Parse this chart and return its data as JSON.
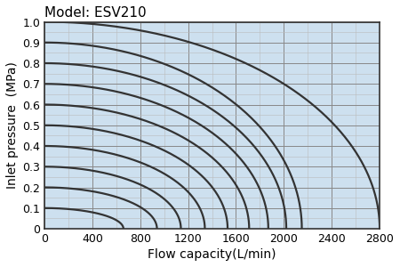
{
  "title": "Model: ESV210",
  "xlabel": "Flow capacity(L/min)",
  "ylabel": "Inlet pressure  (MPa)",
  "xlim": [
    0,
    2800
  ],
  "ylim": [
    0,
    1.0
  ],
  "xticks": [
    0,
    400,
    800,
    1200,
    1600,
    2000,
    2400,
    2800
  ],
  "yticks": [
    0,
    0.1,
    0.2,
    0.3,
    0.4,
    0.5,
    0.6,
    0.7,
    0.8,
    0.9,
    1.0
  ],
  "bg_color": "#cde0ef",
  "curve_color": "#333333",
  "curve_x_intercepts": [
    660,
    940,
    1140,
    1340,
    1530,
    1710,
    1870,
    2020,
    2150,
    2800
  ],
  "curve_y_intercepts": [
    0.1,
    0.2,
    0.3,
    0.4,
    0.5,
    0.6,
    0.7,
    0.8,
    0.9,
    1.0
  ],
  "title_fontsize": 11,
  "label_fontsize": 10,
  "tick_fontsize": 9,
  "linewidth": 1.6,
  "major_grid_color": "#888888",
  "minor_grid_color": "#bbbbbb",
  "major_grid_linewidth": 0.7,
  "minor_grid_linewidth": 0.4,
  "spine_color": "#333333",
  "spine_linewidth": 1.2
}
